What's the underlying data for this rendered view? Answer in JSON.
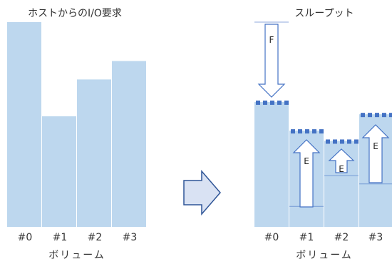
{
  "left_panel": {
    "title": "ホストからのI/O要求",
    "x_label": "ボリューム",
    "bars": [
      {
        "label": "#0",
        "value": 100
      },
      {
        "label": "#1",
        "value": 54
      },
      {
        "label": "#2",
        "value": 72
      },
      {
        "label": "#3",
        "value": 81
      }
    ]
  },
  "right_panel": {
    "title": "スループット",
    "x_label": "ボリューム",
    "bars": [
      {
        "label": "#0",
        "value": 61
      },
      {
        "label": "#1",
        "value": 47
      },
      {
        "label": "#2",
        "value": 42
      },
      {
        "label": "#3",
        "value": 55
      }
    ],
    "baselines": [
      {
        "label": "#1",
        "value": 10
      },
      {
        "label": "#2",
        "value": 25
      },
      {
        "label": "#3",
        "value": 21
      }
    ],
    "arrow_f_label": "F",
    "arrow_e_label": "E"
  },
  "transition_arrow": "right",
  "colors": {
    "bar_fill": "#bdd7ee",
    "cap_dash": "#4472c4",
    "arrow_fill": "#d9e2f3",
    "arrow_stroke": "#2f5597",
    "inner_arrow_stroke": "#4472c4"
  }
}
